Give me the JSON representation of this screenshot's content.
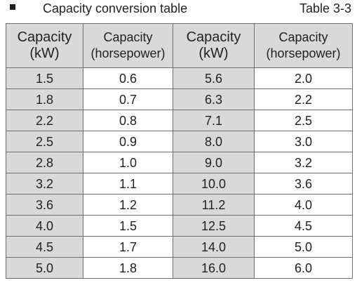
{
  "caption": {
    "title": "Capacity conversion table",
    "ref": "Table 3-3"
  },
  "headers": [
    {
      "line1": "Capacity",
      "line2": "(kW)"
    },
    {
      "line1": "Capacity",
      "line2": "(horsepower)"
    },
    {
      "line1": "Capacity",
      "line2": "(kW)"
    },
    {
      "line1": "Capacity",
      "line2": "(horsepower)"
    }
  ],
  "rows": [
    [
      "1.5",
      "0.6",
      "5.6",
      "2.0"
    ],
    [
      "1.8",
      "0.7",
      "6.3",
      "2.2"
    ],
    [
      "2.2",
      "0.8",
      "7.1",
      "2.5"
    ],
    [
      "2.5",
      "0.9",
      "8.0",
      "3.0"
    ],
    [
      "2.8",
      "1.0",
      "9.0",
      "3.2"
    ],
    [
      "3.2",
      "1.1",
      "10.0",
      "3.6"
    ],
    [
      "3.6",
      "1.2",
      "11.2",
      "4.0"
    ],
    [
      "4.0",
      "1.5",
      "12.5",
      "4.5"
    ],
    [
      "4.5",
      "1.7",
      "14.0",
      "5.0"
    ],
    [
      "5.0",
      "1.8",
      "16.0",
      "6.0"
    ]
  ]
}
